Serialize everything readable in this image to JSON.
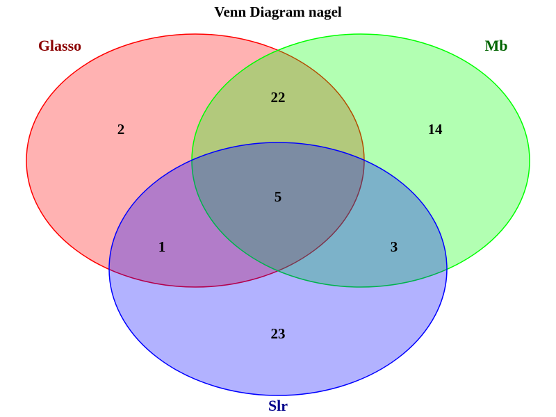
{
  "title": "Venn Diagram nagel",
  "sets": [
    {
      "id": "A",
      "name": "Glasso",
      "label_color": "#8b0000",
      "fill": "#ff0000",
      "stroke": "#ff0000",
      "fill_opacity": 0.3
    },
    {
      "id": "B",
      "name": "Mb",
      "label_color": "#006400",
      "fill": "#00ff00",
      "stroke": "#00ff00",
      "fill_opacity": 0.3
    },
    {
      "id": "C",
      "name": "Slr",
      "label_color": "#00008b",
      "fill": "#0000ff",
      "stroke": "#0000ff",
      "fill_opacity": 0.3
    }
  ],
  "regions": {
    "glasso_only": 2,
    "mb_only": 14,
    "slr_only": 23,
    "glasso_mb": 22,
    "glasso_slr": 1,
    "mb_slr": 3,
    "all_three": 5
  }
}
